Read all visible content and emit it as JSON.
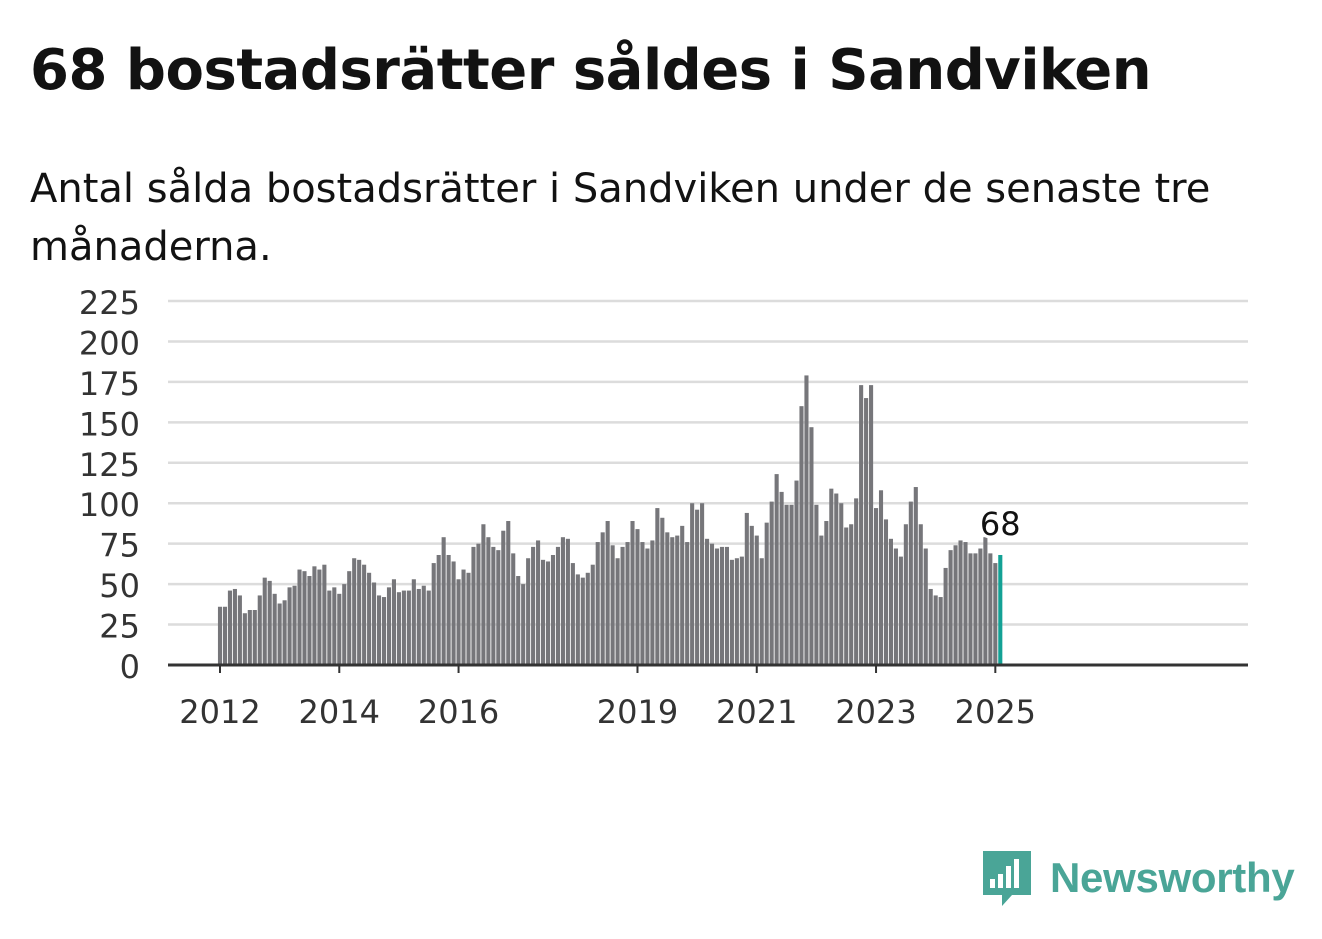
{
  "title": "68 bostadsrätter såldes i Sandviken",
  "subtitle": "Antal sålda bostadsrätter i Sandviken under de senaste tre månaderna.",
  "brand": {
    "name": "Newsworthy",
    "color": "#4aa597",
    "icon": "bar-chart-speech-bubble-icon"
  },
  "colors": {
    "bar": "#76767a",
    "highlight": "#13a195",
    "grid": "#dcdcdc",
    "axis": "#333333"
  },
  "chart_data": {
    "type": "bar",
    "start": "2012-01",
    "ylim": [
      0,
      225
    ],
    "yticks": [
      0,
      25,
      50,
      75,
      100,
      125,
      150,
      175,
      200,
      225
    ],
    "xticks": [
      {
        "label": "2012",
        "month": "2012-01"
      },
      {
        "label": "2014",
        "month": "2014-01"
      },
      {
        "label": "2016",
        "month": "2016-01"
      },
      {
        "label": "2019",
        "month": "2019-01"
      },
      {
        "label": "2021",
        "month": "2021-01"
      },
      {
        "label": "2023",
        "month": "2023-01"
      },
      {
        "label": "2025",
        "month": "2025-01"
      }
    ],
    "values": [
      36,
      36,
      46,
      47,
      43,
      32,
      34,
      34,
      43,
      54,
      52,
      44,
      38,
      40,
      48,
      49,
      59,
      58,
      55,
      61,
      59,
      62,
      46,
      48,
      44,
      50,
      58,
      66,
      65,
      62,
      57,
      51,
      43,
      42,
      48,
      53,
      45,
      46,
      46,
      53,
      47,
      49,
      46,
      63,
      68,
      79,
      68,
      64,
      53,
      59,
      57,
      73,
      75,
      87,
      79,
      73,
      71,
      83,
      89,
      69,
      55,
      50,
      66,
      73,
      77,
      65,
      64,
      68,
      73,
      79,
      78,
      63,
      56,
      54,
      57,
      62,
      76,
      82,
      89,
      74,
      66,
      73,
      76,
      89,
      84,
      76,
      72,
      77,
      97,
      91,
      82,
      79,
      80,
      86,
      76,
      100,
      96,
      100,
      78,
      75,
      72,
      73,
      73,
      65,
      66,
      67,
      94,
      86,
      80,
      66,
      88,
      101,
      118,
      107,
      99,
      99,
      114,
      160,
      179,
      147,
      99,
      80,
      89,
      109,
      106,
      100,
      85,
      87,
      103,
      173,
      165,
      173,
      97,
      108,
      90,
      78,
      72,
      67,
      87,
      101,
      110,
      87,
      72,
      47,
      43,
      42,
      60,
      71,
      74,
      77,
      76,
      69,
      69,
      72,
      79,
      69,
      63,
      68
    ],
    "highlight_label": "68"
  }
}
